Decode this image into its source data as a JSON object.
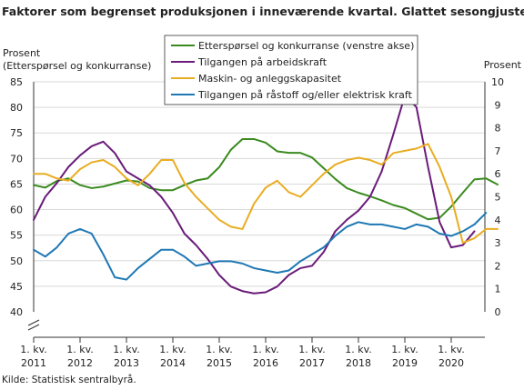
{
  "title": "Faktorer som begrenset produksjonen i inneværende kvartal. Glattet sesongjustert",
  "source": "Kilde: Statistisk sentralbyrå.",
  "chart_data": {
    "type": "line",
    "ylabel_left": [
      "Prosent",
      "(Etterspørsel og konkurranse)"
    ],
    "ylabel_right": "Prosent",
    "ylim_left": [
      40,
      85
    ],
    "yticks_left": [
      40,
      45,
      50,
      55,
      60,
      65,
      70,
      75,
      80,
      85
    ],
    "ylim_right": [
      0,
      10
    ],
    "yticks_right": [
      0,
      1,
      2,
      3,
      4,
      5,
      6,
      7,
      8,
      9,
      10
    ],
    "axis_break": true,
    "x_start": "2011Q1",
    "x_ticks": [
      {
        "line1": "1. kv.",
        "line2": "2011"
      },
      {
        "line1": "1. kv.",
        "line2": "2012"
      },
      {
        "line1": "1. kv.",
        "line2": "2013"
      },
      {
        "line1": "1. kv.",
        "line2": "2014"
      },
      {
        "line1": "1. kv.",
        "line2": "2015"
      },
      {
        "line1": "1. kv.",
        "line2": "2016"
      },
      {
        "line1": "1. kv.",
        "line2": "2017"
      },
      {
        "line1": "1. kv.",
        "line2": "2018"
      },
      {
        "line1": "1. kv.",
        "line2": "2019"
      },
      {
        "line1": "1. kv.",
        "line2": "2020"
      }
    ],
    "grid": true,
    "legend_position": "top-center",
    "series": [
      {
        "name": "Etterspørsel og konkurranse (venstre akse)",
        "axis": "left",
        "color": "#3a8a1e",
        "values": [
          64.8,
          64.3,
          65.6,
          66.1,
          64.8,
          64.2,
          64.5,
          65.1,
          65.7,
          65.5,
          64.2,
          63.8,
          63.8,
          64.8,
          65.7,
          66.1,
          68.3,
          71.7,
          73.8,
          73.8,
          73.1,
          71.4,
          71.1,
          71.1,
          70.2,
          68.1,
          66.0,
          64.2,
          63.3,
          62.6,
          61.8,
          60.9,
          60.3,
          59.2,
          58.1,
          58.4,
          60.6,
          63.3,
          65.9,
          66.1,
          64.9
        ]
      },
      {
        "name": "Tilgangen på arbeidskraft",
        "axis": "right",
        "color": "#6a1b7a",
        "values": [
          4.0,
          5.0,
          5.6,
          6.3,
          6.8,
          7.2,
          7.4,
          6.9,
          6.1,
          5.8,
          5.5,
          5.0,
          4.3,
          3.4,
          2.9,
          2.3,
          1.6,
          1.1,
          0.9,
          0.8,
          0.85,
          1.1,
          1.6,
          1.9,
          2.0,
          2.6,
          3.5,
          4.0,
          4.4,
          5.0,
          6.1,
          7.7,
          9.4,
          8.9,
          6.3,
          3.9,
          2.8,
          2.9,
          3.5
        ]
      },
      {
        "name": "Maskin- og anleggskapasitet",
        "axis": "right",
        "color": "#e8ad23",
        "values": [
          6.0,
          6.0,
          5.8,
          5.7,
          6.2,
          6.5,
          6.6,
          6.3,
          5.8,
          5.5,
          6.0,
          6.6,
          6.6,
          5.6,
          5.0,
          4.5,
          4.0,
          3.7,
          3.6,
          4.7,
          5.4,
          5.7,
          5.2,
          5.0,
          5.5,
          6.0,
          6.4,
          6.6,
          6.7,
          6.6,
          6.4,
          6.9,
          7.0,
          7.1,
          7.3,
          6.3,
          5.0,
          3.0,
          3.2,
          3.6,
          3.6
        ]
      },
      {
        "name": "Tilgangen på råstoff og/eller elektrisk kraft",
        "axis": "right",
        "color": "#1f78b4",
        "values": [
          2.7,
          2.4,
          2.8,
          3.4,
          3.6,
          3.4,
          2.5,
          1.5,
          1.4,
          1.9,
          2.3,
          2.7,
          2.7,
          2.4,
          2.0,
          2.1,
          2.2,
          2.2,
          2.1,
          1.9,
          1.8,
          1.7,
          1.8,
          2.2,
          2.5,
          2.8,
          3.3,
          3.7,
          3.9,
          3.8,
          3.8,
          3.7,
          3.6,
          3.8,
          3.7,
          3.4,
          3.3,
          3.5,
          3.8,
          4.3
        ]
      }
    ]
  }
}
